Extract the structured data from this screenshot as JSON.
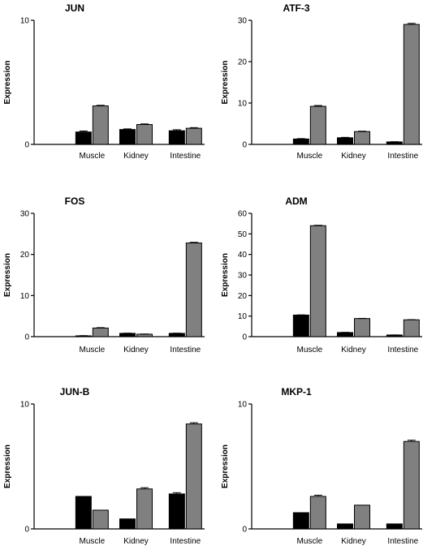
{
  "chart_data": [
    {
      "type": "bar",
      "title": "JUN",
      "ylabel": "Expression",
      "ylim": [
        0,
        10
      ],
      "yticks": [
        0,
        10
      ],
      "categories": [
        "Muscle",
        "Kidney",
        "Intestine"
      ],
      "series": [
        {
          "values": [
            1.0,
            1.2,
            1.1
          ],
          "errors": [
            0.08,
            0.05,
            0.08
          ],
          "color": "#000000"
        },
        {
          "values": [
            3.1,
            1.6,
            1.3
          ],
          "errors": [
            0.05,
            0.05,
            0.05
          ],
          "color": "#808080"
        }
      ]
    },
    {
      "type": "bar",
      "title": "ATF-3",
      "ylabel": "Expression",
      "ylim": [
        0,
        30
      ],
      "yticks": [
        0,
        10,
        20,
        30
      ],
      "categories": [
        "Muscle",
        "Kidney",
        "Intestine"
      ],
      "series": [
        {
          "values": [
            1.3,
            1.6,
            0.6
          ],
          "errors": [
            0.1,
            0.1,
            0.05
          ],
          "color": "#000000"
        },
        {
          "values": [
            9.2,
            3.1,
            29.0
          ],
          "errors": [
            0.2,
            0.1,
            0.25
          ],
          "color": "#808080"
        }
      ]
    },
    {
      "type": "bar",
      "title": "FOS",
      "ylabel": "Expression",
      "ylim": [
        0,
        30
      ],
      "yticks": [
        0,
        10,
        20,
        30
      ],
      "categories": [
        "Muscle",
        "Kidney",
        "Intestine"
      ],
      "series": [
        {
          "values": [
            0.2,
            0.8,
            0.8
          ],
          "errors": [
            0.05,
            0.05,
            0.05
          ],
          "color": "#000000"
        },
        {
          "values": [
            2.1,
            0.6,
            22.8
          ],
          "errors": [
            0.1,
            0.05,
            0.15
          ],
          "color": "#808080"
        }
      ]
    },
    {
      "type": "bar",
      "title": "ADM",
      "ylabel": "Expression",
      "ylim": [
        0,
        60
      ],
      "yticks": [
        0,
        10,
        20,
        30,
        40,
        50,
        60
      ],
      "categories": [
        "Muscle",
        "Kidney",
        "Intestine"
      ],
      "series": [
        {
          "values": [
            10.5,
            2.0,
            0.8
          ],
          "errors": [
            0.1,
            0.1,
            0.05
          ],
          "color": "#000000"
        },
        {
          "values": [
            54.0,
            8.8,
            8.2
          ],
          "errors": [
            0.2,
            0.1,
            0.1
          ],
          "color": "#808080"
        }
      ]
    },
    {
      "type": "bar",
      "title": "JUN-B",
      "ylabel": "Expression",
      "ylim": [
        0,
        10
      ],
      "yticks": [
        0,
        10
      ],
      "categories": [
        "Muscle",
        "Kidney",
        "Intestine"
      ],
      "series": [
        {
          "values": [
            2.6,
            0.8,
            2.8
          ],
          "errors": [
            0.0,
            0.0,
            0.1
          ],
          "color": "#000000"
        },
        {
          "values": [
            1.5,
            3.2,
            8.4
          ],
          "errors": [
            0.0,
            0.1,
            0.1
          ],
          "color": "#808080"
        }
      ]
    },
    {
      "type": "bar",
      "title": "MKP-1",
      "ylabel": "Expression",
      "ylim": [
        0,
        10
      ],
      "yticks": [
        0,
        10
      ],
      "categories": [
        "Muscle",
        "Kidney",
        "Intestine"
      ],
      "series": [
        {
          "values": [
            1.3,
            0.4,
            0.4
          ],
          "errors": [
            0.0,
            0.0,
            0.0
          ],
          "color": "#000000"
        },
        {
          "values": [
            2.6,
            1.9,
            7.0
          ],
          "errors": [
            0.1,
            0.0,
            0.1
          ],
          "color": "#808080"
        }
      ]
    }
  ]
}
